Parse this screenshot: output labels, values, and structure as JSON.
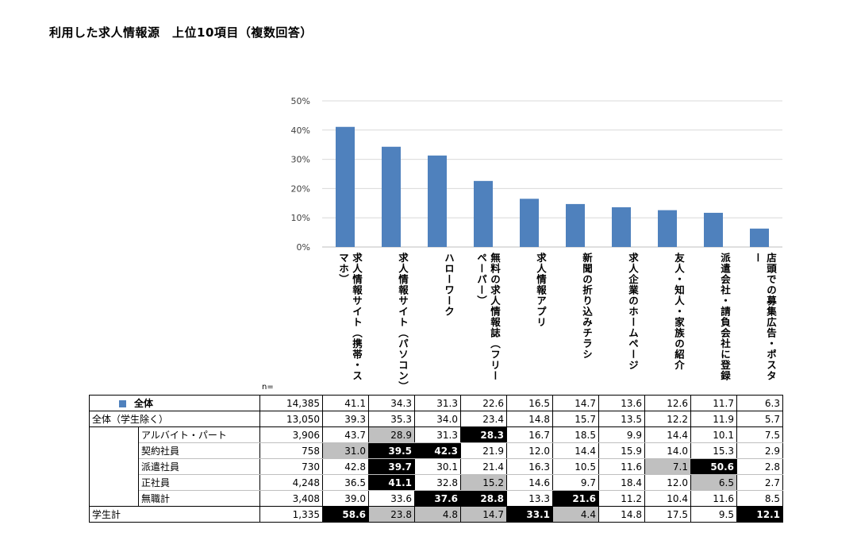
{
  "title": "利用した求人情報源　上位10項目（複数回答）",
  "n_label": "n=",
  "colors": {
    "bar": "#4f81bd",
    "gray_highlight": "#c0c0c0",
    "black_highlight": "#000000"
  },
  "chart_data": {
    "type": "bar",
    "categories": [
      "求人情報サイト（携帯・スマホ）",
      "求人情報サイト（パソコン）",
      "ハローワーク",
      "無料の求人情報誌（フリーペーパー）",
      "求人情報アプリ",
      "新聞の折り込みチラシ",
      "求人企業のホームページ",
      "友人・知人・家族の紹介",
      "派遣会社・請負会社に登録",
      "店頭での募集広告・ポスター"
    ],
    "series": [
      {
        "name": "全体",
        "values": [
          41.1,
          34.3,
          31.3,
          22.6,
          16.5,
          14.7,
          13.6,
          12.6,
          11.7,
          6.3
        ]
      }
    ],
    "yticks": [
      "0%",
      "10%",
      "20%",
      "30%",
      "40%",
      "50%"
    ],
    "ylim": [
      0,
      50
    ],
    "grid": true
  },
  "table": {
    "rows": [
      {
        "label": "全体",
        "legend": true,
        "n": "14,385",
        "values": [
          "41.1",
          "34.3",
          "31.3",
          "22.6",
          "16.5",
          "14.7",
          "13.6",
          "12.6",
          "11.7",
          "6.3"
        ],
        "hl": [
          "",
          "",
          "",
          "",
          "",
          "",
          "",
          "",
          "",
          ""
        ]
      },
      {
        "label": "全体（学生除く）",
        "n": "13,050",
        "values": [
          "39.3",
          "35.3",
          "34.0",
          "23.4",
          "14.8",
          "15.7",
          "13.5",
          "12.2",
          "11.9",
          "5.7"
        ],
        "hl": [
          "",
          "",
          "",
          "",
          "",
          "",
          "",
          "",
          "",
          ""
        ]
      },
      {
        "label": "アルバイト・パート",
        "indent": true,
        "n": "3,906",
        "values": [
          "43.7",
          "28.9",
          "31.3",
          "28.3",
          "16.7",
          "18.5",
          "9.9",
          "14.4",
          "10.1",
          "7.5"
        ],
        "hl": [
          "",
          "g",
          "",
          "b",
          "",
          "",
          "",
          "",
          "",
          ""
        ]
      },
      {
        "label": "契約社員",
        "indent": true,
        "n": "758",
        "values": [
          "31.0",
          "39.5",
          "42.3",
          "21.9",
          "12.0",
          "14.4",
          "15.9",
          "14.0",
          "15.3",
          "2.9"
        ],
        "hl": [
          "g",
          "b",
          "b",
          "",
          "",
          "",
          "",
          "",
          "",
          ""
        ]
      },
      {
        "label": "派遣社員",
        "indent": true,
        "n": "730",
        "values": [
          "42.8",
          "39.7",
          "30.1",
          "21.4",
          "16.3",
          "10.5",
          "11.6",
          "7.1",
          "50.6",
          "2.8"
        ],
        "hl": [
          "",
          "b",
          "",
          "",
          "",
          "",
          "",
          "g",
          "b",
          ""
        ]
      },
      {
        "label": "正社員",
        "indent": true,
        "n": "4,248",
        "values": [
          "36.5",
          "41.1",
          "32.8",
          "15.2",
          "14.6",
          "9.7",
          "18.4",
          "12.0",
          "6.5",
          "2.7"
        ],
        "hl": [
          "",
          "b",
          "",
          "g",
          "",
          "",
          "",
          "",
          "g",
          ""
        ]
      },
      {
        "label": "無職計",
        "indent": true,
        "n": "3,408",
        "values": [
          "39.0",
          "33.6",
          "37.6",
          "28.8",
          "13.3",
          "21.6",
          "11.2",
          "10.4",
          "11.6",
          "8.5"
        ],
        "hl": [
          "",
          "",
          "b",
          "b",
          "",
          "b",
          "",
          "",
          "",
          ""
        ]
      },
      {
        "label": "学生計",
        "n": "1,335",
        "values": [
          "58.6",
          "23.8",
          "4.8",
          "14.7",
          "33.1",
          "4.4",
          "14.8",
          "17.5",
          "9.5",
          "12.1"
        ],
        "hl": [
          "b",
          "g",
          "g",
          "g",
          "b",
          "g",
          "",
          "",
          "",
          "b"
        ]
      }
    ]
  }
}
